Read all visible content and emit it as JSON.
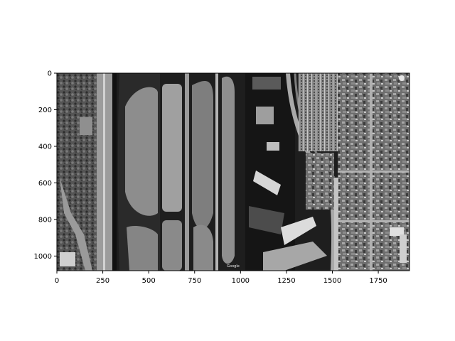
{
  "figure": {
    "kind": "image plot (aerial satellite photo, grayscale)",
    "subject": "airport runways, taxiways, terminal and surrounding neighborhood",
    "watermark": "Google",
    "colors": {
      "background": "#ffffff",
      "axis": "#000000",
      "image_dark": "#1a1a1a",
      "image_light": "#bdbdbd"
    }
  },
  "chart_data": {
    "type": "image",
    "title": "",
    "xlabel": "",
    "ylabel": "",
    "xlim": [
      0,
      1920
    ],
    "ylim": [
      1080,
      0
    ],
    "x_ticks": [
      0,
      250,
      500,
      750,
      1000,
      1250,
      1500,
      1750
    ],
    "y_ticks": [
      0,
      200,
      400,
      600,
      800,
      1000
    ],
    "x_tick_labels": [
      "0",
      "250",
      "500",
      "750",
      "1000",
      "1250",
      "1500",
      "1750"
    ],
    "y_tick_labels": [
      "0",
      "200",
      "400",
      "600",
      "800",
      "1000"
    ],
    "grid": false
  }
}
